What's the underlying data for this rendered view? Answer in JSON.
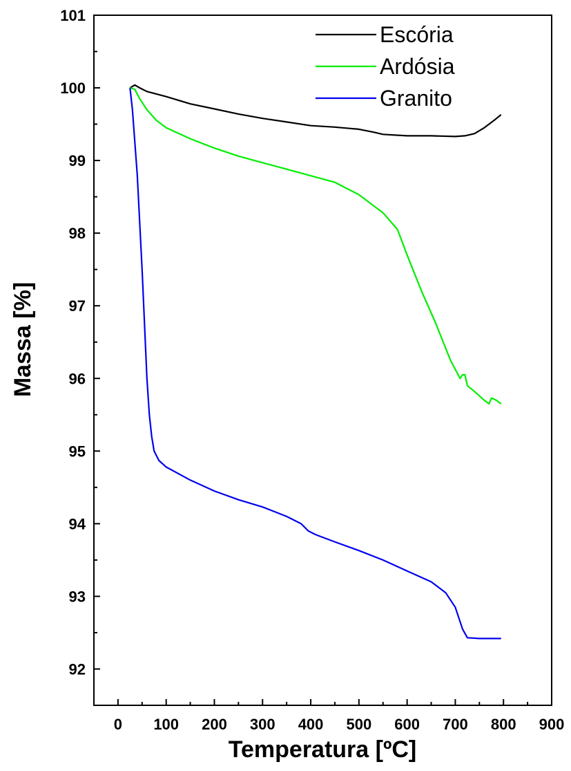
{
  "chart_data": {
    "type": "line",
    "xlabel": "Temperatura [ºC]",
    "ylabel": "Massa [%]",
    "xlim": [
      -50,
      900
    ],
    "ylim": [
      91.5,
      101
    ],
    "x_ticks": [
      0,
      100,
      200,
      300,
      400,
      500,
      600,
      700,
      800,
      900
    ],
    "y_ticks": [
      92,
      93,
      94,
      95,
      96,
      97,
      98,
      99,
      100,
      101
    ],
    "grid": false,
    "legend_position": "top-right",
    "series": [
      {
        "name": "Escória",
        "color": "#000000",
        "points": [
          [
            25,
            100.0
          ],
          [
            35,
            100.04
          ],
          [
            45,
            100.0
          ],
          [
            60,
            99.95
          ],
          [
            100,
            99.88
          ],
          [
            150,
            99.78
          ],
          [
            200,
            99.71
          ],
          [
            250,
            99.64
          ],
          [
            300,
            99.58
          ],
          [
            350,
            99.53
          ],
          [
            400,
            99.48
          ],
          [
            450,
            99.46
          ],
          [
            500,
            99.43
          ],
          [
            530,
            99.39
          ],
          [
            550,
            99.36
          ],
          [
            600,
            99.34
          ],
          [
            650,
            99.34
          ],
          [
            700,
            99.33
          ],
          [
            720,
            99.34
          ],
          [
            740,
            99.37
          ],
          [
            760,
            99.45
          ],
          [
            780,
            99.55
          ],
          [
            795,
            99.63
          ]
        ]
      },
      {
        "name": "Ardósia",
        "color": "#00ee00",
        "points": [
          [
            25,
            100.0
          ],
          [
            35,
            99.98
          ],
          [
            45,
            99.85
          ],
          [
            60,
            99.7
          ],
          [
            80,
            99.55
          ],
          [
            100,
            99.45
          ],
          [
            150,
            99.3
          ],
          [
            200,
            99.17
          ],
          [
            250,
            99.06
          ],
          [
            300,
            98.97
          ],
          [
            350,
            98.88
          ],
          [
            400,
            98.79
          ],
          [
            450,
            98.7
          ],
          [
            500,
            98.53
          ],
          [
            550,
            98.28
          ],
          [
            580,
            98.05
          ],
          [
            600,
            97.7
          ],
          [
            630,
            97.2
          ],
          [
            660,
            96.75
          ],
          [
            690,
            96.25
          ],
          [
            710,
            96.0
          ],
          [
            715,
            96.05
          ],
          [
            720,
            96.05
          ],
          [
            725,
            95.9
          ],
          [
            740,
            95.82
          ],
          [
            760,
            95.7
          ],
          [
            770,
            95.65
          ],
          [
            775,
            95.73
          ],
          [
            785,
            95.7
          ],
          [
            795,
            95.65
          ]
        ]
      },
      {
        "name": "Granito",
        "color": "#0000ee",
        "points": [
          [
            25,
            100.0
          ],
          [
            30,
            99.7
          ],
          [
            40,
            98.8
          ],
          [
            50,
            97.5
          ],
          [
            60,
            96.0
          ],
          [
            65,
            95.5
          ],
          [
            70,
            95.2
          ],
          [
            75,
            95.0
          ],
          [
            85,
            94.87
          ],
          [
            100,
            94.78
          ],
          [
            150,
            94.6
          ],
          [
            200,
            94.45
          ],
          [
            250,
            94.33
          ],
          [
            300,
            94.23
          ],
          [
            350,
            94.1
          ],
          [
            380,
            94.0
          ],
          [
            395,
            93.9
          ],
          [
            410,
            93.85
          ],
          [
            450,
            93.75
          ],
          [
            500,
            93.63
          ],
          [
            550,
            93.5
          ],
          [
            600,
            93.35
          ],
          [
            650,
            93.2
          ],
          [
            680,
            93.05
          ],
          [
            700,
            92.85
          ],
          [
            715,
            92.55
          ],
          [
            725,
            92.43
          ],
          [
            750,
            92.42
          ],
          [
            795,
            92.42
          ]
        ]
      }
    ]
  }
}
